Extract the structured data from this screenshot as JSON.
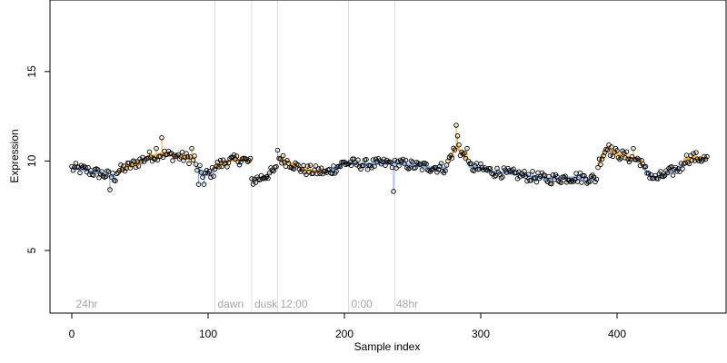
{
  "chart_data": {
    "type": "scatter",
    "title": "",
    "xlabel": "Sample index",
    "ylabel": "Expression",
    "xlim": [
      -16,
      480
    ],
    "ylim": [
      1.5,
      19
    ],
    "x_ticks": [
      0,
      100,
      200,
      300,
      400
    ],
    "y_ticks": [
      5,
      10,
      15
    ],
    "grid": false,
    "colors": {
      "blue_line": "#7ea6e0",
      "orange_line": "#f5a623",
      "gray_line": "#a0a0a0",
      "point_stroke": "#000000",
      "divider": "#dddddd",
      "annotation": "#a6a6a6"
    },
    "dividers": [
      105,
      132,
      151,
      203,
      237
    ],
    "annotations": [
      {
        "x": 3,
        "label": "24hr"
      },
      {
        "x": 107,
        "label": "dawn"
      },
      {
        "x": 134,
        "label": "dusk"
      },
      {
        "x": 153,
        "label": "12:00"
      },
      {
        "x": 205,
        "label": "0:00"
      },
      {
        "x": 238,
        "label": "48hr"
      }
    ],
    "annotation_y": 2.0,
    "segments": [
      {
        "color": "blue",
        "x_start": 0,
        "x_end": 32,
        "anchors": [
          [
            0,
            9.6
          ],
          [
            10,
            9.5
          ],
          [
            20,
            9.3
          ],
          [
            32,
            9.1
          ]
        ]
      },
      {
        "color": "orange",
        "x_start": 33,
        "x_end": 90,
        "anchors": [
          [
            33,
            9.4
          ],
          [
            45,
            9.8
          ],
          [
            55,
            10.2
          ],
          [
            65,
            10.4
          ],
          [
            75,
            10.3
          ],
          [
            90,
            10.1
          ]
        ]
      },
      {
        "color": "blue",
        "x_start": 91,
        "x_end": 104,
        "anchors": [
          [
            91,
            9.7
          ],
          [
            97,
            9.2
          ],
          [
            104,
            9.4
          ]
        ]
      },
      {
        "color": "orange",
        "x_start": 105,
        "x_end": 131,
        "anchors": [
          [
            105,
            9.7
          ],
          [
            115,
            10.0
          ],
          [
            125,
            10.1
          ],
          [
            131,
            9.9
          ]
        ]
      },
      {
        "color": "gray",
        "x_start": 132,
        "x_end": 150,
        "anchors": [
          [
            132,
            8.9
          ],
          [
            140,
            9.1
          ],
          [
            150,
            9.5
          ]
        ]
      },
      {
        "color": "orange",
        "x_start": 151,
        "x_end": 185,
        "anchors": [
          [
            151,
            10.2
          ],
          [
            160,
            9.9
          ],
          [
            170,
            9.5
          ],
          [
            185,
            9.4
          ]
        ]
      },
      {
        "color": "blue",
        "x_start": 186,
        "x_end": 275,
        "anchors": [
          [
            186,
            9.3
          ],
          [
            200,
            9.9
          ],
          [
            215,
            9.8
          ],
          [
            237,
            9.9
          ],
          [
            255,
            9.7
          ],
          [
            275,
            9.6
          ]
        ]
      },
      {
        "color": "orange",
        "x_start": 276,
        "x_end": 290,
        "anchors": [
          [
            276,
            10.0
          ],
          [
            282,
            10.8
          ],
          [
            290,
            10.1
          ]
        ]
      },
      {
        "color": "blue",
        "x_start": 291,
        "x_end": 385,
        "anchors": [
          [
            291,
            9.7
          ],
          [
            310,
            9.4
          ],
          [
            330,
            9.2
          ],
          [
            350,
            9.0
          ],
          [
            370,
            9.1
          ],
          [
            385,
            9.0
          ]
        ]
      },
      {
        "color": "orange",
        "x_start": 386,
        "x_end": 418,
        "anchors": [
          [
            386,
            9.8
          ],
          [
            392,
            10.7
          ],
          [
            400,
            10.4
          ],
          [
            418,
            10.0
          ]
        ]
      },
      {
        "color": "blue",
        "x_start": 419,
        "x_end": 448,
        "anchors": [
          [
            419,
            9.6
          ],
          [
            428,
            9.0
          ],
          [
            440,
            9.4
          ],
          [
            448,
            9.7
          ]
        ]
      },
      {
        "color": "orange",
        "x_start": 449,
        "x_end": 466,
        "anchors": [
          [
            449,
            10.1
          ],
          [
            458,
            10.2
          ],
          [
            466,
            10.1
          ]
        ]
      }
    ],
    "highlights": [
      [
        66,
        11.3
      ],
      [
        62,
        10.7
      ],
      [
        88,
        10.7
      ],
      [
        93,
        8.7
      ],
      [
        97,
        8.7
      ],
      [
        28,
        8.4
      ],
      [
        151,
        10.6
      ],
      [
        236,
        8.3
      ],
      [
        282,
        12.0
      ],
      [
        283,
        11.4
      ],
      [
        284,
        10.9
      ],
      [
        290,
        10.7
      ],
      [
        394,
        10.9
      ],
      [
        412,
        10.7
      ]
    ]
  }
}
